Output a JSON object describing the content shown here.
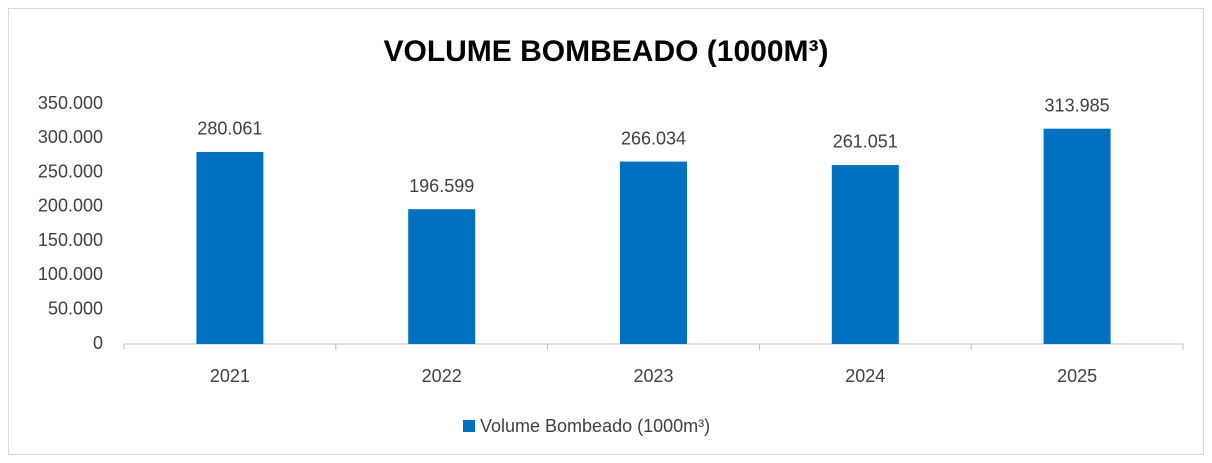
{
  "chart_data": {
    "type": "bar",
    "title": "VOLUME BOMBEADO (1000M³)",
    "categories": [
      "2021",
      "2022",
      "2023",
      "2024",
      "2025"
    ],
    "series": [
      {
        "name": "Volume Bombeado (1000m³)",
        "color": "#0070c0",
        "values": [
          280061,
          196599,
          266034,
          261051,
          313985
        ],
        "value_labels": [
          "280.061",
          "196.599",
          "266.034",
          "261.051",
          "313.985"
        ]
      }
    ],
    "ylim": [
      0,
      350000
    ],
    "yticks": [
      0,
      {
        "value": 50000,
        "label": "50.000"
      },
      {
        "value": 100000,
        "label": "100.000"
      },
      {
        "value": 150000,
        "label": "150.000"
      },
      {
        "value": 200000,
        "label": "200.000"
      },
      {
        "value": 250000,
        "label": "250.000"
      },
      {
        "value": 300000,
        "label": "300.000"
      },
      {
        "value": 350000,
        "label": "350.000"
      }
    ],
    "grid": false,
    "legend": "bottom"
  }
}
